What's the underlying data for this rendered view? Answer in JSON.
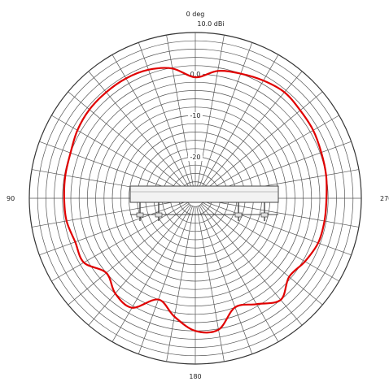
{
  "chart_data": {
    "type": "polar",
    "title": "",
    "angle_labels": {
      "top": "0 deg",
      "left": "90",
      "right": "270",
      "bottom": "180"
    },
    "max_label": "10.0 dBi",
    "r_min_db": -30,
    "r_max_db": 10,
    "ring_step_db": 2,
    "spoke_step_deg": 10,
    "ring_labels": [
      {
        "db": 0,
        "text": "0.0"
      },
      {
        "db": -10,
        "text": "-10"
      },
      {
        "db": -20,
        "text": "-20"
      }
    ],
    "series": [
      {
        "color": "#e00000",
        "angle_deg": [
          0,
          10,
          20,
          30,
          40,
          50,
          60,
          70,
          80,
          90,
          100,
          110,
          120,
          130,
          140,
          150,
          160,
          170,
          180,
          190,
          200,
          210,
          220,
          230,
          240,
          250,
          260,
          270,
          280,
          290,
          300,
          310,
          320,
          330,
          340,
          350
        ],
        "gain_db": [
          -0.8,
          1.8,
          3.0,
          3.4,
          3.4,
          3.3,
          2.8,
          2.0,
          1.8,
          1.6,
          1.5,
          0.8,
          1.0,
          -2.0,
          0.0,
          0.5,
          -4.0,
          -1.0,
          2.0,
          2.2,
          -2.0,
          -0.5,
          2.0,
          -0.5,
          0.5,
          1.5,
          1.6,
          1.6,
          2.0,
          2.3,
          2.8,
          3.0,
          3.4,
          2.8,
          2.0,
          1.2
        ]
      }
    ],
    "grid": true,
    "antenna_sketch": "mount-bracket"
  }
}
